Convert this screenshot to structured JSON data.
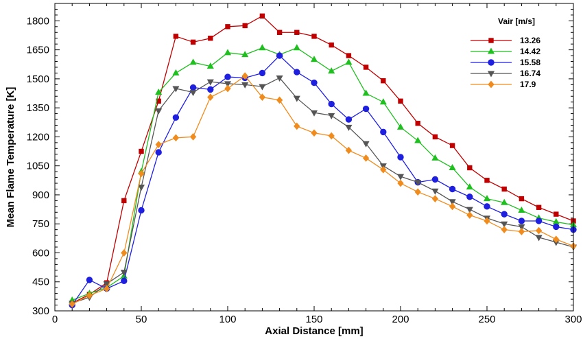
{
  "chart_data": {
    "type": "line",
    "title": "",
    "xlabel": "Axial Distance [mm]",
    "ylabel": "Mean Flame Temperature [K]",
    "xlim": [
      0,
      300
    ],
    "ylim": [
      300,
      1890
    ],
    "xticks": [
      0,
      50,
      100,
      150,
      200,
      250,
      300
    ],
    "yticks": [
      300,
      450,
      600,
      750,
      900,
      1050,
      1200,
      1350,
      1500,
      1650,
      1800
    ],
    "grid": false,
    "legend_title": "Vair [m/s]",
    "legend_position": "top-right",
    "x": [
      10,
      20,
      30,
      40,
      50,
      60,
      70,
      80,
      90,
      100,
      110,
      120,
      130,
      140,
      150,
      160,
      170,
      180,
      190,
      200,
      210,
      220,
      230,
      240,
      250,
      260,
      270,
      280,
      290,
      300
    ],
    "series": [
      {
        "name": "13.26",
        "color": "#c00000",
        "marker": "square",
        "values": [
          340,
          385,
          445,
          870,
          1125,
          1385,
          1720,
          1690,
          1710,
          1770,
          1775,
          1825,
          1740,
          1740,
          1720,
          1675,
          1620,
          1560,
          1490,
          1385,
          1270,
          1200,
          1155,
          1040,
          975,
          930,
          880,
          835,
          800,
          765
        ]
      },
      {
        "name": "14.42",
        "color": "#1fbf1f",
        "marker": "triangle-up",
        "values": [
          355,
          390,
          420,
          480,
          1020,
          1430,
          1530,
          1585,
          1565,
          1635,
          1625,
          1660,
          1625,
          1660,
          1600,
          1540,
          1585,
          1425,
          1380,
          1250,
          1180,
          1090,
          1040,
          940,
          880,
          860,
          820,
          780,
          760,
          745
        ]
      },
      {
        "name": "15.58",
        "color": "#1f1fe0",
        "marker": "circle",
        "values": [
          330,
          460,
          415,
          455,
          820,
          1120,
          1300,
          1455,
          1445,
          1510,
          1505,
          1530,
          1620,
          1535,
          1480,
          1370,
          1290,
          1345,
          1225,
          1095,
          965,
          980,
          930,
          890,
          840,
          800,
          765,
          765,
          735,
          720
        ]
      },
      {
        "name": "16.74",
        "color": "#555555",
        "marker": "triangle-down",
        "values": [
          340,
          370,
          440,
          500,
          940,
          1335,
          1450,
          1430,
          1485,
          1475,
          1470,
          1460,
          1505,
          1400,
          1325,
          1310,
          1250,
          1165,
          1050,
          995,
          965,
          920,
          865,
          825,
          780,
          750,
          735,
          680,
          655,
          630
        ]
      },
      {
        "name": "17.9",
        "color": "#f08c1e",
        "marker": "diamond",
        "values": [
          335,
          380,
          415,
          600,
          1010,
          1160,
          1195,
          1200,
          1405,
          1450,
          1515,
          1405,
          1390,
          1255,
          1220,
          1205,
          1130,
          1090,
          1030,
          960,
          915,
          880,
          840,
          795,
          765,
          720,
          710,
          715,
          670,
          635
        ]
      }
    ]
  }
}
